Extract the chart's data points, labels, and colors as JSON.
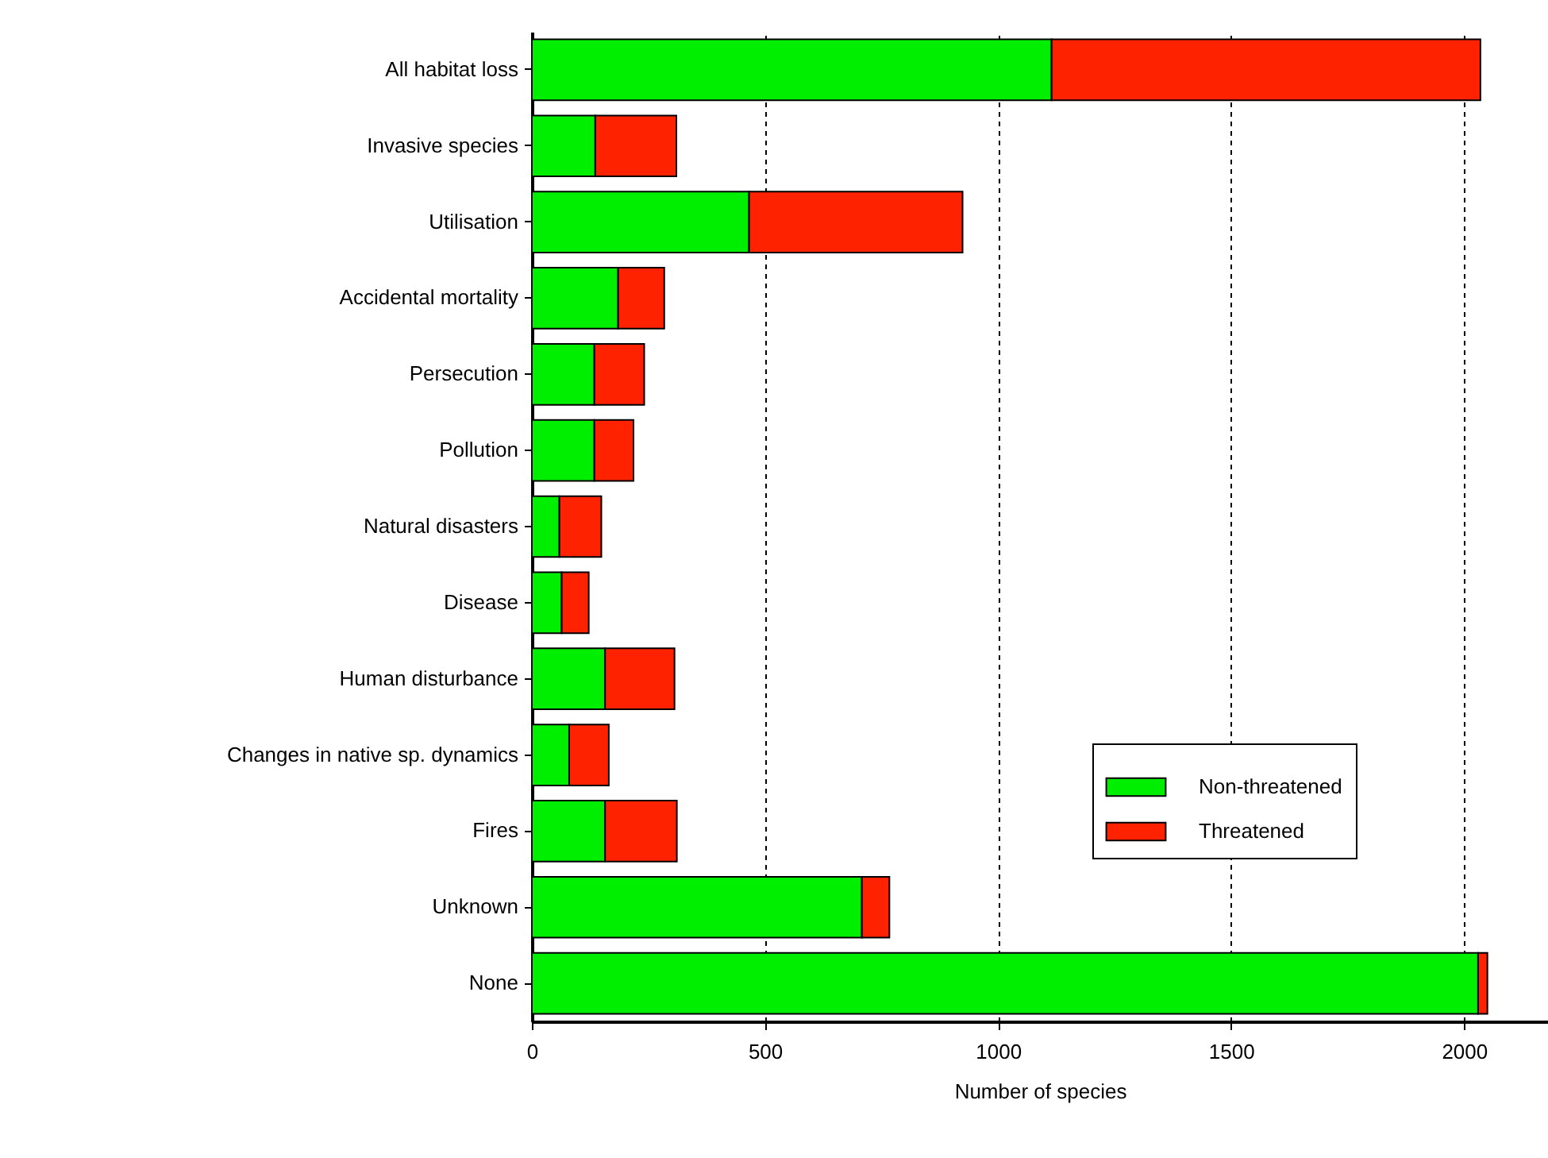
{
  "chart_data": {
    "type": "bar",
    "orientation": "horizontal",
    "stacked": true,
    "xlabel": "Number of species",
    "categories": [
      "All habitat loss",
      "Invasive species",
      "Utilisation",
      "Accidental mortality",
      "Persecution",
      "Pollution",
      "Natural disasters",
      "Disease",
      "Human disturbance",
      "Changes in native sp. dynamics",
      "Fires",
      "Unknown",
      "None"
    ],
    "series": [
      {
        "name": "Non-threatened",
        "color": "#00ee00",
        "values": [
          1115,
          136,
          466,
          185,
          134,
          134,
          59,
          64,
          157,
          80,
          157,
          708,
          2030
        ]
      },
      {
        "name": "Threatened",
        "color": "#ff2200",
        "values": [
          920,
          174,
          458,
          99,
          107,
          84,
          90,
          58,
          149,
          85,
          154,
          59,
          20
        ]
      }
    ],
    "xlim": [
      0,
      2180
    ],
    "xticks": [
      0,
      500,
      1000,
      1500,
      2000
    ],
    "grid": "x",
    "line_style": "dashed",
    "legend": "bottom right"
  }
}
